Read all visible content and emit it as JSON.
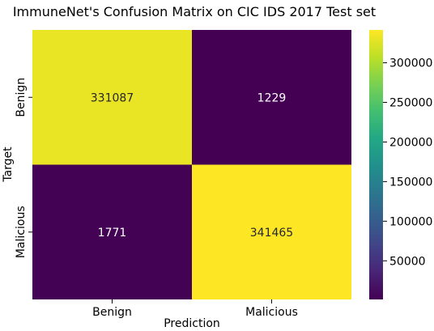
{
  "chart_data": {
    "type": "heatmap",
    "title": "ImmuneNet's Confusion Matrix on CIC IDS 2017 Test set",
    "xlabel": "Prediction",
    "ylabel": "Target",
    "x_categories": [
      "Benign",
      "Malicious"
    ],
    "y_categories": [
      "Benign",
      "Malicious"
    ],
    "values": [
      [
        331087,
        1229
      ],
      [
        1771,
        341465
      ]
    ],
    "colormap": "viridis",
    "colorbar": {
      "range": [
        1229,
        341465
      ],
      "ticks": [
        50000,
        100000,
        150000,
        200000,
        250000,
        300000
      ],
      "tick_labels": [
        "50000",
        "100000",
        "150000",
        "200000",
        "250000",
        "300000"
      ]
    },
    "cell_text_colors": {
      "light_cell": "#262626",
      "dark_cell": "#ffffff"
    }
  }
}
